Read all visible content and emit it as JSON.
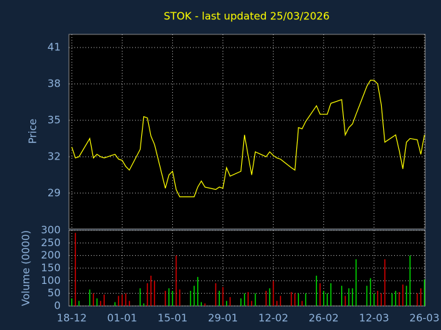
{
  "chart_data": {
    "type": "line",
    "title": "STOK - last updated 25/03/2026",
    "title_color": "#ffff00",
    "grid": true,
    "x": [
      0,
      1,
      2,
      5,
      6,
      7,
      8,
      9,
      12,
      13,
      14,
      15,
      16,
      19,
      20,
      21,
      22,
      23,
      26,
      27,
      28,
      29,
      30,
      33,
      34,
      35,
      36,
      37,
      40,
      41,
      42,
      43,
      44,
      47,
      48,
      49,
      50,
      51,
      54,
      55,
      56,
      57,
      58,
      61,
      62,
      63,
      64,
      65,
      68,
      69,
      70,
      71,
      72,
      75,
      76,
      77,
      78,
      79,
      82,
      83,
      84,
      85,
      86,
      87,
      89,
      90,
      91,
      92,
      93,
      94,
      96,
      97,
      98
    ],
    "xlim": [
      -0.8,
      98.2
    ],
    "xticks": [
      {
        "value": 0,
        "label": "18-12"
      },
      {
        "value": 14,
        "label": "01-01"
      },
      {
        "value": 28,
        "label": "15-01"
      },
      {
        "value": 42,
        "label": "29-01"
      },
      {
        "value": 56,
        "label": "12-02"
      },
      {
        "value": 70,
        "label": "26-02"
      },
      {
        "value": 84,
        "label": "12-03"
      },
      {
        "value": 98,
        "label": "26-03"
      }
    ],
    "price": {
      "ylabel": "Price",
      "color": "#ffff00",
      "values": [
        32.8,
        31.9,
        32.0,
        33.5,
        31.9,
        32.2,
        32.0,
        31.9,
        32.2,
        31.8,
        31.7,
        31.2,
        30.9,
        32.6,
        35.3,
        35.2,
        33.7,
        33.0,
        29.4,
        30.5,
        30.8,
        29.3,
        28.7,
        28.7,
        28.7,
        29.5,
        30.0,
        29.5,
        29.3,
        29.5,
        29.4,
        31.1,
        30.4,
        30.8,
        33.8,
        32.1,
        30.5,
        32.4,
        32.0,
        32.4,
        32.1,
        31.9,
        31.8,
        31.1,
        30.9,
        34.4,
        34.3,
        34.9,
        36.2,
        35.5,
        35.5,
        35.5,
        36.4,
        36.7,
        33.8,
        34.4,
        34.7,
        35.5,
        37.8,
        38.3,
        38.3,
        38.0,
        36.3,
        33.2,
        33.6,
        33.8,
        32.5,
        31.0,
        33.2,
        33.5,
        33.4,
        32.2,
        33.8
      ],
      "ylim": [
        26.05,
        42.08
      ],
      "yticks": [
        29,
        32,
        35,
        38,
        41
      ]
    },
    "volume": {
      "type": "bar",
      "ylabel": "Volume (0000)",
      "up_color": "#00dd00",
      "down_color": "#dd0000",
      "values": [
        30,
        290,
        20,
        65,
        50,
        30,
        20,
        45,
        15,
        40,
        45,
        50,
        20,
        70,
        10,
        90,
        120,
        100,
        60,
        70,
        60,
        200,
        65,
        60,
        80,
        115,
        15,
        10,
        90,
        60,
        75,
        20,
        35,
        30,
        50,
        55,
        20,
        50,
        60,
        70,
        100,
        20,
        40,
        55,
        50,
        50,
        20,
        50,
        120,
        90,
        60,
        50,
        90,
        80,
        40,
        70,
        70,
        185,
        80,
        110,
        50,
        60,
        50,
        185,
        50,
        60,
        55,
        85,
        80,
        200,
        50,
        70,
        105
      ],
      "ylim": [
        0,
        300
      ],
      "yticks": [
        0,
        50,
        100,
        150,
        200,
        250,
        300
      ]
    }
  }
}
